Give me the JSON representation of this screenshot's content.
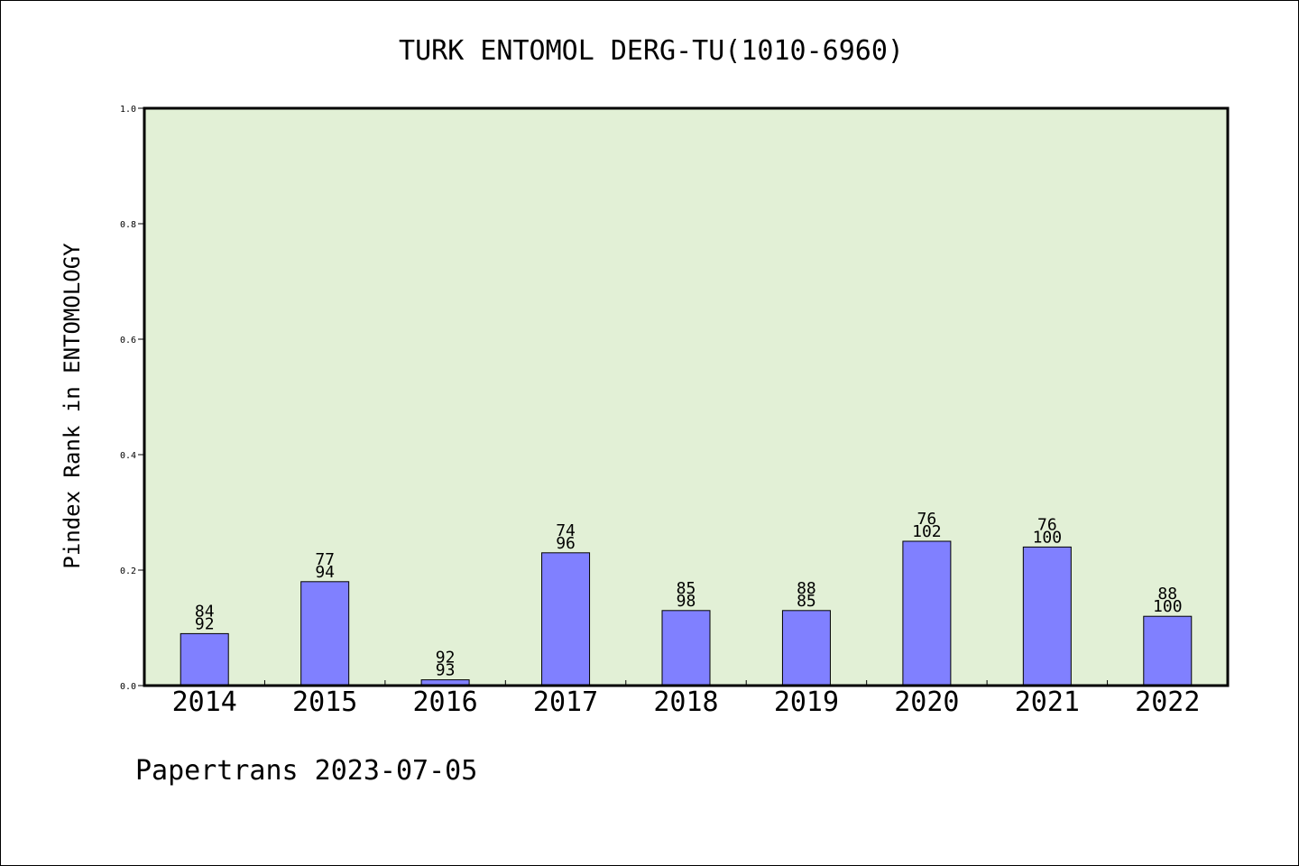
{
  "chart_data": {
    "type": "bar",
    "title": "TURK ENTOMOL DERG-TU(1010-6960)",
    "ylabel": "Pindex Rank in ENTOMOLOGY",
    "xlabel": "",
    "ylim": [
      0,
      1.0
    ],
    "yticks": [
      "0.0",
      "0.2",
      "0.4",
      "0.6",
      "0.8",
      "1.0"
    ],
    "ytick_values": [
      0,
      0.2,
      0.4,
      0.6,
      0.8,
      1.0
    ],
    "categories": [
      "2014",
      "2015",
      "2016",
      "2017",
      "2018",
      "2019",
      "2020",
      "2021",
      "2022"
    ],
    "values": [
      0.09,
      0.18,
      0.01,
      0.23,
      0.13,
      0.13,
      0.25,
      0.24,
      0.12
    ],
    "labels_top": [
      "84",
      "77",
      "92",
      "74",
      "85",
      "88",
      "76",
      "76",
      "88"
    ],
    "labels_bottom": [
      "92",
      "94",
      "93",
      "96",
      "98",
      "85",
      "102",
      "100",
      "100"
    ],
    "bar_color": "#8080ff",
    "plot_bg": "#e2f0d6",
    "grid": false
  },
  "footer": "Papertrans 2023-07-05"
}
